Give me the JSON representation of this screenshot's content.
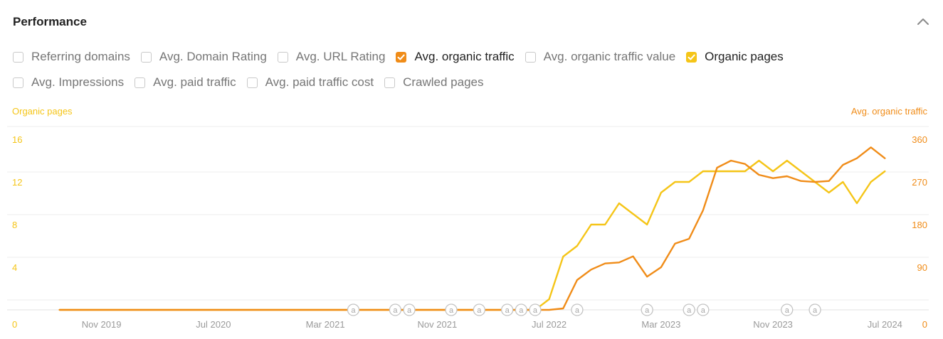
{
  "panel": {
    "title": "Performance"
  },
  "checkboxes": {
    "row1": [
      {
        "label": "Referring domains",
        "checked": false,
        "color": ""
      },
      {
        "label": "Avg. Domain Rating",
        "checked": false,
        "color": ""
      },
      {
        "label": "Avg. URL Rating",
        "checked": false,
        "color": ""
      },
      {
        "label": "Avg. organic traffic",
        "checked": true,
        "color": "#f08c18"
      },
      {
        "label": "Avg. organic traffic value",
        "checked": false,
        "color": ""
      },
      {
        "label": "Organic pages",
        "checked": true,
        "color": "#f5c518"
      }
    ],
    "row2": [
      {
        "label": "Avg. Impressions",
        "checked": false,
        "color": ""
      },
      {
        "label": "Avg. paid traffic",
        "checked": false,
        "color": ""
      },
      {
        "label": "Avg. paid traffic cost",
        "checked": false,
        "color": ""
      },
      {
        "label": "Crawled pages",
        "checked": false,
        "color": ""
      }
    ]
  },
  "chart_data": {
    "type": "line",
    "y_left_label": "Organic pages",
    "y_right_label": "Avg. organic traffic",
    "y_left_ticks": [
      "0",
      "4",
      "8",
      "12",
      "16"
    ],
    "y_right_ticks": [
      "0",
      "90",
      "180",
      "270",
      "360"
    ],
    "ylim_left": [
      0,
      16
    ],
    "ylim_right": [
      0,
      360
    ],
    "x_ticks": [
      "Nov 2019",
      "Jul 2020",
      "Mar 2021",
      "Nov 2021",
      "Jul 2022",
      "Mar 2023",
      "Nov 2023",
      "Jul 2024"
    ],
    "x_range": [
      "2019-07",
      "2024-08"
    ],
    "annotation_symbol": "a",
    "annotations": [
      "2021-05",
      "2021-08",
      "2021-09",
      "2021-12",
      "2022-02",
      "2022-04",
      "2022-05",
      "2022-06",
      "2022-09",
      "2023-02",
      "2023-05",
      "2023-06",
      "2023-12",
      "2024-02"
    ],
    "grid": true,
    "series": [
      {
        "name": "Organic pages",
        "axis": "left",
        "color": "#f5c518",
        "points": [
          [
            "2019-08",
            0
          ],
          [
            "2019-09",
            0
          ],
          [
            "2019-10",
            0
          ],
          [
            "2019-11",
            0
          ],
          [
            "2019-12",
            0
          ],
          [
            "2020-01",
            0
          ],
          [
            "2020-02",
            0
          ],
          [
            "2020-03",
            0
          ],
          [
            "2020-04",
            0
          ],
          [
            "2020-05",
            0
          ],
          [
            "2020-06",
            0
          ],
          [
            "2020-07",
            0
          ],
          [
            "2020-08",
            0
          ],
          [
            "2020-09",
            0
          ],
          [
            "2020-10",
            0
          ],
          [
            "2020-11",
            0
          ],
          [
            "2020-12",
            0
          ],
          [
            "2021-01",
            0
          ],
          [
            "2021-02",
            0
          ],
          [
            "2021-03",
            0
          ],
          [
            "2021-04",
            0
          ],
          [
            "2021-05",
            0
          ],
          [
            "2021-06",
            0
          ],
          [
            "2021-07",
            0
          ],
          [
            "2021-08",
            0
          ],
          [
            "2021-09",
            0
          ],
          [
            "2021-10",
            0
          ],
          [
            "2021-11",
            0
          ],
          [
            "2021-12",
            0
          ],
          [
            "2022-01",
            0
          ],
          [
            "2022-02",
            0
          ],
          [
            "2022-03",
            0
          ],
          [
            "2022-04",
            0
          ],
          [
            "2022-05",
            0
          ],
          [
            "2022-06",
            0
          ],
          [
            "2022-07",
            1
          ],
          [
            "2022-08",
            5
          ],
          [
            "2022-09",
            6
          ],
          [
            "2022-10",
            8
          ],
          [
            "2022-11",
            8
          ],
          [
            "2022-12",
            10
          ],
          [
            "2023-01",
            9
          ],
          [
            "2023-02",
            8
          ],
          [
            "2023-03",
            11
          ],
          [
            "2023-04",
            12
          ],
          [
            "2023-05",
            12
          ],
          [
            "2023-06",
            13
          ],
          [
            "2023-07",
            13
          ],
          [
            "2023-08",
            13
          ],
          [
            "2023-09",
            13
          ],
          [
            "2023-10",
            14
          ],
          [
            "2023-11",
            13
          ],
          [
            "2023-12",
            14
          ],
          [
            "2024-01",
            13
          ],
          [
            "2024-02",
            12
          ],
          [
            "2024-03",
            11
          ],
          [
            "2024-04",
            12
          ],
          [
            "2024-05",
            10
          ],
          [
            "2024-06",
            12
          ],
          [
            "2024-07",
            13
          ]
        ]
      },
      {
        "name": "Avg. organic traffic",
        "axis": "right",
        "color": "#f08c18",
        "points": [
          [
            "2019-08",
            0
          ],
          [
            "2019-09",
            0
          ],
          [
            "2019-10",
            0
          ],
          [
            "2019-11",
            0
          ],
          [
            "2019-12",
            0
          ],
          [
            "2020-01",
            0
          ],
          [
            "2020-02",
            0
          ],
          [
            "2020-03",
            0
          ],
          [
            "2020-04",
            0
          ],
          [
            "2020-05",
            0
          ],
          [
            "2020-06",
            0
          ],
          [
            "2020-07",
            0
          ],
          [
            "2020-08",
            0
          ],
          [
            "2020-09",
            0
          ],
          [
            "2020-10",
            0
          ],
          [
            "2020-11",
            0
          ],
          [
            "2020-12",
            0
          ],
          [
            "2021-01",
            0
          ],
          [
            "2021-02",
            0
          ],
          [
            "2021-03",
            0
          ],
          [
            "2021-04",
            0
          ],
          [
            "2021-05",
            0
          ],
          [
            "2021-06",
            0
          ],
          [
            "2021-07",
            0
          ],
          [
            "2021-08",
            0
          ],
          [
            "2021-09",
            0
          ],
          [
            "2021-10",
            0
          ],
          [
            "2021-11",
            0
          ],
          [
            "2021-12",
            0
          ],
          [
            "2022-01",
            0
          ],
          [
            "2022-02",
            0
          ],
          [
            "2022-03",
            0
          ],
          [
            "2022-04",
            0
          ],
          [
            "2022-05",
            0
          ],
          [
            "2022-06",
            0
          ],
          [
            "2022-07",
            0
          ],
          [
            "2022-08",
            3
          ],
          [
            "2022-09",
            63
          ],
          [
            "2022-10",
            85
          ],
          [
            "2022-11",
            98
          ],
          [
            "2022-12",
            100
          ],
          [
            "2023-01",
            113
          ],
          [
            "2023-02",
            70
          ],
          [
            "2023-03",
            90
          ],
          [
            "2023-04",
            140
          ],
          [
            "2023-05",
            150
          ],
          [
            "2023-06",
            210
          ],
          [
            "2023-07",
            300
          ],
          [
            "2023-08",
            315
          ],
          [
            "2023-09",
            308
          ],
          [
            "2023-10",
            285
          ],
          [
            "2023-11",
            278
          ],
          [
            "2023-12",
            282
          ],
          [
            "2024-01",
            272
          ],
          [
            "2024-02",
            270
          ],
          [
            "2024-03",
            272
          ],
          [
            "2024-04",
            306
          ],
          [
            "2024-05",
            320
          ],
          [
            "2024-06",
            343
          ],
          [
            "2024-07",
            320
          ]
        ]
      }
    ]
  }
}
